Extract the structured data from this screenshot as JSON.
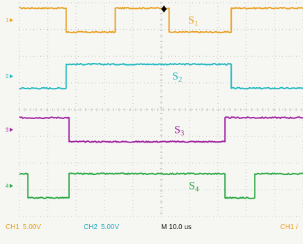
{
  "chart_data": {
    "type": "line",
    "title": "",
    "xlabel": "",
    "ylabel": "",
    "grid": true,
    "x_range": [
      0,
      10
    ],
    "y_range": [
      0,
      4
    ],
    "series": [
      {
        "name": "S1",
        "label": "S",
        "sub": "1",
        "color": "#e8a020",
        "marker": "1",
        "y_high": 3.9,
        "y_low": 3.45,
        "initial": "high",
        "transitions": [
          1.65,
          3.38,
          5.28,
          7.47
        ]
      },
      {
        "name": "S2",
        "label": "S",
        "sub": "2",
        "color": "#20b8c0",
        "marker": "2",
        "y_high": 2.85,
        "y_low": 2.4,
        "initial": "low",
        "transitions": [
          1.65,
          7.47
        ]
      },
      {
        "name": "S3",
        "label": "S",
        "sub": "3",
        "color": "#a020a0",
        "marker": "3",
        "y_high": 1.85,
        "y_low": 1.4,
        "initial": "high",
        "transitions": [
          1.75,
          7.25
        ]
      },
      {
        "name": "S4",
        "label": "S",
        "sub": "4",
        "color": "#2aa845",
        "marker": "4",
        "y_high": 0.8,
        "y_low": 0.35,
        "initial": "high",
        "transitions": [
          0.3,
          1.75,
          7.25,
          8.3
        ]
      }
    ]
  },
  "status_bar": {
    "ch1": "CH1",
    "ch1_scale": "5.00V",
    "ch2": "CH2",
    "ch2_scale": "5.00V",
    "timebase": "M 10.0 us",
    "trigger": "CH1 /"
  },
  "colors": {
    "grid_dots": "#b9b9b9",
    "status_channel": "#e8a020",
    "status_channel2": "#20a8c0",
    "status_text": "#111111",
    "trigger_marker": "#000000"
  }
}
